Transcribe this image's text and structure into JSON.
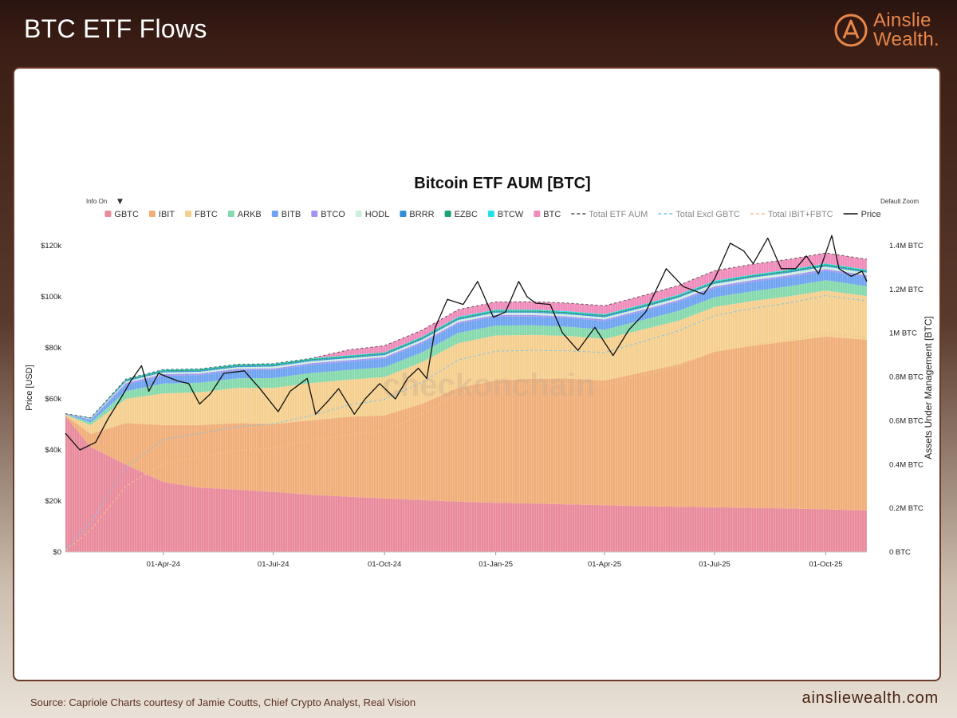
{
  "page": {
    "title": "BTC ETF Flows",
    "brand_line1": "Ainslie",
    "brand_line2": "Wealth.",
    "source": "Source: Capriole Charts courtesy of Jamie Coutts, Chief Crypto Analyst, Real Vision",
    "url": "ainsliewealth.com"
  },
  "colors": {
    "GBTC": "#e98a9c",
    "IBIT": "#f0ae79",
    "FBTC": "#f5cf8f",
    "ARKB": "#86d9ad",
    "BITB": "#6fa4f0",
    "BTCO": "#a493f0",
    "HODL": "#cceedd",
    "BRRR": "#2f8fd8",
    "EZBC": "#1ba372",
    "BTCW": "#22e0e8",
    "BTC": "#f08cbb",
    "price": "#111111",
    "brand": "#e8874a"
  },
  "chart_data": {
    "type": "area",
    "title": "Bitcoin ETF AUM [BTC]",
    "info_label": "Info On",
    "info_caret": "▼",
    "zoom_label": "Default Zoom",
    "watermark": "checkonchain",
    "ylabel_left": "Price [USD]",
    "ylabel_right": "Assets Under Management [BTC]",
    "y_left_lim": [
      0,
      120000
    ],
    "y_left_ticks": [
      "$0",
      "$20k",
      "$40k",
      "$60k",
      "$80k",
      "$100k",
      "$120k"
    ],
    "y_right_lim": [
      0,
      1400000
    ],
    "y_right_ticks": [
      "0 BTC",
      "0.2M BTC",
      "0.4M BTC",
      "0.6M BTC",
      "0.8M BTC",
      "1M BTC",
      "1.2M BTC",
      "1.4M BTC"
    ],
    "x_ticks": [
      "01-Apr-24",
      "01-Jul-24",
      "01-Oct-24",
      "01-Jan-25",
      "01-Apr-25",
      "01-Jul-25",
      "01-Oct-25"
    ],
    "x_tick_dates": [
      "2024-04-01",
      "2024-07-01",
      "2024-10-01",
      "2025-01-01",
      "2025-04-01",
      "2025-07-01",
      "2025-10-01"
    ],
    "x_range": [
      "2024-01-11",
      "2025-11-04"
    ],
    "legend": [
      {
        "name": "GBTC",
        "style": "box"
      },
      {
        "name": "IBIT",
        "style": "box"
      },
      {
        "name": "FBTC",
        "style": "box"
      },
      {
        "name": "ARKB",
        "style": "box"
      },
      {
        "name": "BITB",
        "style": "box"
      },
      {
        "name": "BTCO",
        "style": "box"
      },
      {
        "name": "HODL",
        "style": "box"
      },
      {
        "name": "BRRR",
        "style": "box"
      },
      {
        "name": "EZBC",
        "style": "box"
      },
      {
        "name": "BTCW",
        "style": "box"
      },
      {
        "name": "BTC",
        "style": "box"
      },
      {
        "name": "Total ETF AUM",
        "style": "dash",
        "color": "#555555"
      },
      {
        "name": "Total Excl GBTC",
        "style": "dash",
        "color": "#7ec4ec"
      },
      {
        "name": "Total IBIT+FBTC",
        "style": "dash",
        "color": "#f2c48a"
      },
      {
        "name": "Price",
        "style": "line",
        "color": "#111111"
      }
    ],
    "dates": [
      "2024-01-11",
      "2024-02-01",
      "2024-03-01",
      "2024-04-01",
      "2024-05-01",
      "2024-06-01",
      "2024-07-01",
      "2024-08-01",
      "2024-09-01",
      "2024-10-01",
      "2024-11-01",
      "2024-12-01",
      "2025-01-01",
      "2025-02-01",
      "2025-03-01",
      "2025-04-01",
      "2025-05-01",
      "2025-06-01",
      "2025-07-01",
      "2025-08-01",
      "2025-09-01",
      "2025-10-01",
      "2025-11-04"
    ],
    "series": [
      {
        "name": "GBTC",
        "values": [
          620000,
          480000,
          400000,
          320000,
          295000,
          285000,
          275000,
          262000,
          253000,
          245000,
          238000,
          230000,
          225000,
          222000,
          218000,
          214000,
          210000,
          207000,
          205000,
          202000,
          199000,
          195000,
          190000
        ]
      },
      {
        "name": "IBIT",
        "values": [
          5000,
          60000,
          190000,
          260000,
          285000,
          305000,
          310000,
          340000,
          365000,
          380000,
          440000,
          520000,
          560000,
          570000,
          575000,
          570000,
          610000,
          650000,
          710000,
          740000,
          765000,
          790000,
          780000
        ]
      },
      {
        "name": "FBTC",
        "values": [
          3000,
          40000,
          110000,
          145000,
          150000,
          160000,
          165000,
          170000,
          170000,
          175000,
          190000,
          205000,
          205000,
          200000,
          195000,
          190000,
          195000,
          200000,
          205000,
          205000,
          205000,
          210000,
          200000
        ]
      },
      {
        "name": "ARKB",
        "values": [
          1500,
          12000,
          35000,
          45000,
          44000,
          44000,
          45000,
          46000,
          44000,
          45000,
          45000,
          47000,
          45000,
          44000,
          42000,
          42000,
          43000,
          45000,
          45000,
          45000,
          46000,
          47000,
          45000
        ]
      },
      {
        "name": "BITB",
        "values": [
          1500,
          12000,
          30000,
          35000,
          35000,
          36000,
          37000,
          38000,
          38000,
          39000,
          40000,
          41000,
          41000,
          41000,
          40000,
          40000,
          40000,
          41000,
          41000,
          42000,
          42000,
          43000,
          42000
        ]
      },
      {
        "name": "BTCO",
        "values": [
          500,
          3000,
          8000,
          8000,
          7000,
          7000,
          7000,
          7000,
          7000,
          7000,
          8000,
          8000,
          8000,
          7000,
          7000,
          7000,
          7000,
          8000,
          8000,
          8000,
          8000,
          8000,
          8000
        ]
      },
      {
        "name": "HODL",
        "values": [
          500,
          3000,
          7000,
          8000,
          8000,
          8000,
          9000,
          9000,
          9000,
          9000,
          10000,
          10000,
          10000,
          10000,
          10000,
          10000,
          10000,
          11000,
          12000,
          12000,
          12000,
          12000,
          12000
        ]
      },
      {
        "name": "BRRR",
        "values": [
          300,
          1500,
          4000,
          5000,
          5000,
          5000,
          5000,
          5000,
          5000,
          5000,
          5000,
          5000,
          5000,
          5000,
          5000,
          5000,
          5000,
          5000,
          5000,
          5000,
          5000,
          5000,
          5000
        ]
      },
      {
        "name": "EZBC",
        "values": [
          300,
          1500,
          4000,
          5000,
          5000,
          5000,
          5000,
          5000,
          5000,
          5000,
          5000,
          5000,
          5000,
          5000,
          5000,
          5000,
          5000,
          5000,
          5000,
          5000,
          5000,
          5000,
          5000
        ]
      },
      {
        "name": "BTCW",
        "values": [
          100,
          500,
          2500,
          3000,
          3000,
          3000,
          3000,
          3000,
          3000,
          3000,
          3000,
          4000,
          4000,
          4000,
          4000,
          4000,
          4000,
          4000,
          4000,
          4000,
          4000,
          4000,
          4000
        ]
      },
      {
        "name": "BTC",
        "values": [
          0,
          0,
          0,
          0,
          0,
          0,
          0,
          0,
          25000,
          30000,
          30000,
          33000,
          35000,
          36000,
          37000,
          39000,
          40000,
          42000,
          46000,
          47000,
          47000,
          48000,
          47000
        ]
      }
    ],
    "price": {
      "name": "Price",
      "dates": [
        "2024-01-11",
        "2024-01-23",
        "2024-02-05",
        "2024-02-15",
        "2024-02-28",
        "2024-03-05",
        "2024-03-14",
        "2024-03-20",
        "2024-03-28",
        "2024-04-13",
        "2024-04-22",
        "2024-05-01",
        "2024-05-10",
        "2024-05-21",
        "2024-06-07",
        "2024-06-20",
        "2024-07-05",
        "2024-07-15",
        "2024-07-29",
        "2024-08-05",
        "2024-08-15",
        "2024-08-24",
        "2024-09-06",
        "2024-09-15",
        "2024-09-27",
        "2024-10-10",
        "2024-10-20",
        "2024-10-29",
        "2024-11-05",
        "2024-11-12",
        "2024-11-22",
        "2024-12-05",
        "2024-12-17",
        "2024-12-30",
        "2025-01-09",
        "2025-01-20",
        "2025-01-27",
        "2025-02-03",
        "2025-02-15",
        "2025-02-25",
        "2025-03-10",
        "2025-03-24",
        "2025-04-08",
        "2025-04-21",
        "2025-05-05",
        "2025-05-22",
        "2025-06-05",
        "2025-06-22",
        "2025-07-01",
        "2025-07-14",
        "2025-07-25",
        "2025-08-02",
        "2025-08-14",
        "2025-08-25",
        "2025-09-06",
        "2025-09-15",
        "2025-09-25",
        "2025-10-06",
        "2025-10-12",
        "2025-10-22",
        "2025-10-31",
        "2025-11-04"
      ],
      "values": [
        46500,
        40000,
        43000,
        52000,
        62000,
        67000,
        73000,
        63000,
        70000,
        67000,
        66000,
        58000,
        62000,
        70000,
        71000,
        64000,
        55000,
        63000,
        68000,
        54000,
        59000,
        64000,
        54000,
        60000,
        66000,
        60000,
        68000,
        72000,
        68000,
        88000,
        99000,
        97000,
        106000,
        92000,
        94000,
        106000,
        100000,
        97500,
        97000,
        86000,
        79000,
        88000,
        77000,
        87000,
        94000,
        111000,
        104000,
        101000,
        107000,
        121000,
        118000,
        113000,
        123000,
        111000,
        111000,
        116000,
        109000,
        124000,
        111000,
        108000,
        110000,
        106000
      ]
    }
  }
}
